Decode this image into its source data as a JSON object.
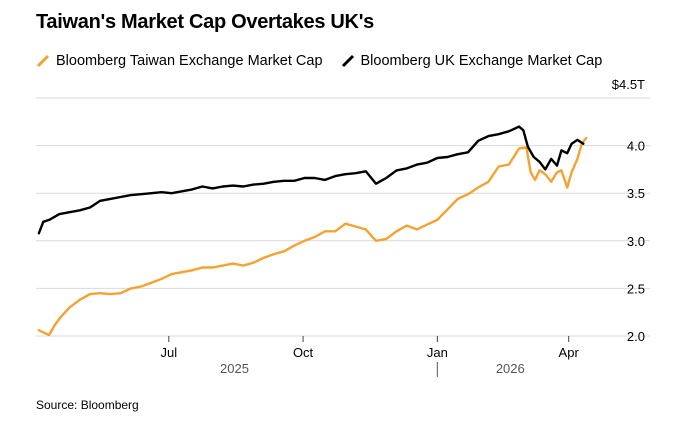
{
  "title": "Taiwan's Market Cap Overtakes UK's",
  "source": "Source: Bloomberg",
  "chart_data": {
    "type": "line",
    "title": "Taiwan's Market Cap Overtakes UK's",
    "y_unit_label": "$4.5T",
    "ylim": [
      2.0,
      4.5
    ],
    "y_ticks": [
      {
        "value": 4.5,
        "label": "$4.5T"
      },
      {
        "value": 4.0,
        "label": "4.0"
      },
      {
        "value": 3.5,
        "label": "3.5"
      },
      {
        "value": 3.0,
        "label": "3.0"
      },
      {
        "value": 2.5,
        "label": "2.5"
      },
      {
        "value": 2.0,
        "label": "2.0"
      }
    ],
    "x_ticks": [
      {
        "date": "2025-07-01",
        "label": "Jul"
      },
      {
        "date": "2025-10-01",
        "label": "Oct"
      },
      {
        "date": "2026-01-01",
        "label": "Jan"
      },
      {
        "date": "2026-04-01",
        "label": "Apr"
      }
    ],
    "year_labels": [
      {
        "date": "2025-08-15",
        "label": "2025"
      },
      {
        "date": "2026-02-20",
        "label": "2026"
      }
    ],
    "year_divider": "2026-01-01",
    "x_range": [
      "2025-04-01",
      "2026-04-30"
    ],
    "grid": true,
    "legend_position": "top-left",
    "series": [
      {
        "name": "Bloomberg Taiwan Exchange Market Cap",
        "color": "#f5a231",
        "points": [
          [
            "2025-04-03",
            2.06
          ],
          [
            "2025-04-07",
            2.03
          ],
          [
            "2025-04-10",
            2.01
          ],
          [
            "2025-04-14",
            2.12
          ],
          [
            "2025-04-18",
            2.2
          ],
          [
            "2025-04-24",
            2.3
          ],
          [
            "2025-05-01",
            2.38
          ],
          [
            "2025-05-08",
            2.44
          ],
          [
            "2025-05-15",
            2.45
          ],
          [
            "2025-05-22",
            2.44
          ],
          [
            "2025-05-29",
            2.45
          ],
          [
            "2025-06-05",
            2.5
          ],
          [
            "2025-06-12",
            2.52
          ],
          [
            "2025-06-19",
            2.56
          ],
          [
            "2025-06-26",
            2.6
          ],
          [
            "2025-07-03",
            2.65
          ],
          [
            "2025-07-10",
            2.67
          ],
          [
            "2025-07-17",
            2.69
          ],
          [
            "2025-07-24",
            2.72
          ],
          [
            "2025-07-31",
            2.72
          ],
          [
            "2025-08-07",
            2.74
          ],
          [
            "2025-08-14",
            2.76
          ],
          [
            "2025-08-21",
            2.74
          ],
          [
            "2025-08-28",
            2.77
          ],
          [
            "2025-09-04",
            2.82
          ],
          [
            "2025-09-11",
            2.86
          ],
          [
            "2025-09-18",
            2.89
          ],
          [
            "2025-09-25",
            2.95
          ],
          [
            "2025-10-02",
            3.0
          ],
          [
            "2025-10-09",
            3.04
          ],
          [
            "2025-10-16",
            3.1
          ],
          [
            "2025-10-23",
            3.1
          ],
          [
            "2025-10-30",
            3.18
          ],
          [
            "2025-11-06",
            3.15
          ],
          [
            "2025-11-13",
            3.12
          ],
          [
            "2025-11-20",
            3.0
          ],
          [
            "2025-11-27",
            3.02
          ],
          [
            "2025-12-04",
            3.1
          ],
          [
            "2025-12-11",
            3.16
          ],
          [
            "2025-12-18",
            3.12
          ],
          [
            "2025-12-25",
            3.17
          ],
          [
            "2026-01-01",
            3.22
          ],
          [
            "2026-01-08",
            3.33
          ],
          [
            "2026-01-15",
            3.44
          ],
          [
            "2026-01-22",
            3.49
          ],
          [
            "2026-01-29",
            3.56
          ],
          [
            "2026-02-05",
            3.62
          ],
          [
            "2026-02-12",
            3.78
          ],
          [
            "2026-02-19",
            3.8
          ],
          [
            "2026-02-26",
            3.97
          ],
          [
            "2026-03-03",
            3.98
          ],
          [
            "2026-03-06",
            3.72
          ],
          [
            "2026-03-09",
            3.64
          ],
          [
            "2026-03-12",
            3.74
          ],
          [
            "2026-03-16",
            3.7
          ],
          [
            "2026-03-20",
            3.62
          ],
          [
            "2026-03-24",
            3.72
          ],
          [
            "2026-03-27",
            3.74
          ],
          [
            "2026-03-31",
            3.56
          ],
          [
            "2026-04-03",
            3.72
          ],
          [
            "2026-04-07",
            3.86
          ],
          [
            "2026-04-10",
            4.02
          ],
          [
            "2026-04-13",
            4.08
          ]
        ]
      },
      {
        "name": "Bloomberg UK Exchange Market Cap",
        "color": "#000000",
        "points": [
          [
            "2025-04-03",
            3.08
          ],
          [
            "2025-04-06",
            3.2
          ],
          [
            "2025-04-10",
            3.22
          ],
          [
            "2025-04-17",
            3.28
          ],
          [
            "2025-04-24",
            3.3
          ],
          [
            "2025-05-01",
            3.32
          ],
          [
            "2025-05-08",
            3.35
          ],
          [
            "2025-05-15",
            3.42
          ],
          [
            "2025-05-22",
            3.44
          ],
          [
            "2025-05-29",
            3.46
          ],
          [
            "2025-06-05",
            3.48
          ],
          [
            "2025-06-12",
            3.49
          ],
          [
            "2025-06-19",
            3.5
          ],
          [
            "2025-06-26",
            3.51
          ],
          [
            "2025-07-03",
            3.5
          ],
          [
            "2025-07-10",
            3.52
          ],
          [
            "2025-07-17",
            3.54
          ],
          [
            "2025-07-24",
            3.57
          ],
          [
            "2025-07-31",
            3.55
          ],
          [
            "2025-08-07",
            3.57
          ],
          [
            "2025-08-14",
            3.58
          ],
          [
            "2025-08-21",
            3.57
          ],
          [
            "2025-08-28",
            3.59
          ],
          [
            "2025-09-04",
            3.6
          ],
          [
            "2025-09-11",
            3.62
          ],
          [
            "2025-09-18",
            3.63
          ],
          [
            "2025-09-25",
            3.63
          ],
          [
            "2025-10-02",
            3.66
          ],
          [
            "2025-10-09",
            3.66
          ],
          [
            "2025-10-16",
            3.64
          ],
          [
            "2025-10-23",
            3.68
          ],
          [
            "2025-10-30",
            3.7
          ],
          [
            "2025-11-06",
            3.71
          ],
          [
            "2025-11-13",
            3.73
          ],
          [
            "2025-11-20",
            3.6
          ],
          [
            "2025-11-27",
            3.66
          ],
          [
            "2025-12-04",
            3.74
          ],
          [
            "2025-12-11",
            3.76
          ],
          [
            "2025-12-18",
            3.8
          ],
          [
            "2025-12-25",
            3.82
          ],
          [
            "2026-01-01",
            3.87
          ],
          [
            "2026-01-08",
            3.88
          ],
          [
            "2026-01-15",
            3.91
          ],
          [
            "2026-01-22",
            3.93
          ],
          [
            "2026-01-29",
            4.05
          ],
          [
            "2026-02-05",
            4.1
          ],
          [
            "2026-02-12",
            4.12
          ],
          [
            "2026-02-19",
            4.15
          ],
          [
            "2026-02-26",
            4.2
          ],
          [
            "2026-03-01",
            4.16
          ],
          [
            "2026-03-04",
            3.99
          ],
          [
            "2026-03-08",
            3.88
          ],
          [
            "2026-03-12",
            3.83
          ],
          [
            "2026-03-16",
            3.75
          ],
          [
            "2026-03-20",
            3.86
          ],
          [
            "2026-03-24",
            3.79
          ],
          [
            "2026-03-27",
            3.95
          ],
          [
            "2026-03-31",
            3.92
          ],
          [
            "2026-04-03",
            4.02
          ],
          [
            "2026-04-07",
            4.06
          ],
          [
            "2026-04-11",
            4.02
          ]
        ]
      }
    ]
  }
}
